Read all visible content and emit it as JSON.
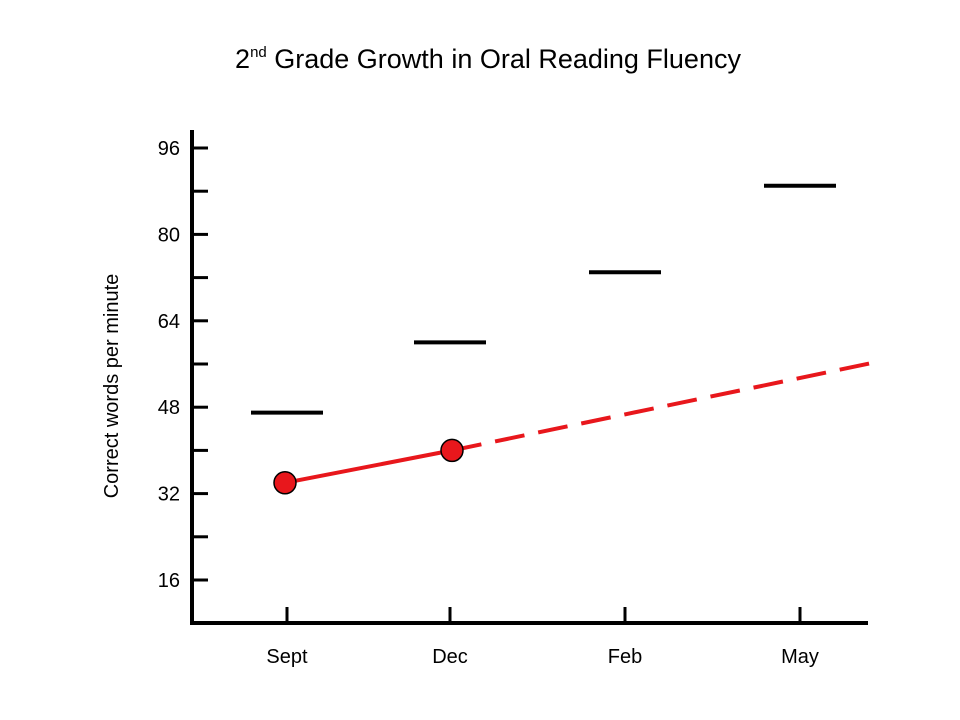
{
  "chart_data": {
    "type": "line",
    "title_main": "2",
    "title_sup": "nd",
    "title_rest": " Grade Growth in Oral Reading Fluency",
    "ylabel": "Correct words per minute",
    "xlabel": "",
    "categories": [
      "Sept",
      "Dec",
      "Feb",
      "May"
    ],
    "y_ticks": [
      16,
      32,
      48,
      64,
      80,
      96
    ],
    "y_minor_ticks": [
      24,
      40,
      56,
      72,
      88
    ],
    "ylim": [
      8,
      100
    ],
    "benchmarks": [
      47,
      60,
      73,
      89
    ],
    "student_points": [
      34,
      40
    ],
    "trend_projection": {
      "start": 40,
      "end": 56.5
    },
    "colors": {
      "axis": "#000000",
      "benchmark": "#000000",
      "student": "#e8171c"
    }
  }
}
